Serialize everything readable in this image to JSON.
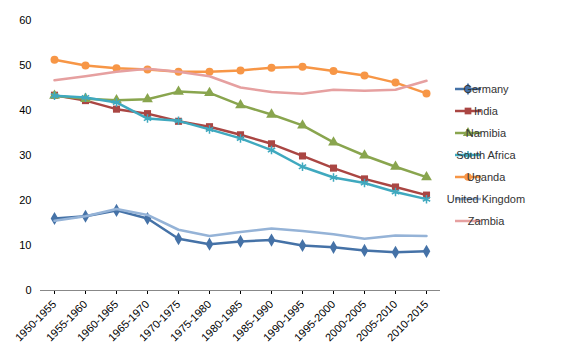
{
  "chart_data": {
    "type": "line",
    "categories": [
      "1950-1955",
      "1955-1960",
      "1960-1965",
      "1965-1970",
      "1970-1975",
      "1975-1980",
      "1980-1985",
      "1985-1990",
      "1990-1995",
      "1995-2000",
      "2000-2005",
      "2005-2010",
      "2010-2015"
    ],
    "ylim": [
      0,
      60
    ],
    "yticks": [
      0,
      10,
      20,
      30,
      40,
      50,
      60
    ],
    "grid": false,
    "legend": "right",
    "series": [
      {
        "name": "Germany",
        "color": "#4572a7",
        "marker": "diamond",
        "values": [
          16,
          16.5,
          17.8,
          16,
          11.5,
          10.3,
          10.9,
          11.2,
          10,
          9.6,
          8.9,
          8.5,
          8.7
        ]
      },
      {
        "name": "India",
        "color": "#aa4643",
        "marker": "square",
        "values": [
          43.4,
          42.2,
          40.3,
          39.3,
          37.6,
          36.4,
          34.6,
          32.6,
          29.9,
          27.2,
          24.8,
          23,
          21.2
        ]
      },
      {
        "name": "Namibia",
        "color": "#89a54e",
        "marker": "triangle",
        "values": [
          43.3,
          42.6,
          42.3,
          42.5,
          44.2,
          43.9,
          41.2,
          39.1,
          36.7,
          32.9,
          30,
          27.5,
          25.2
        ]
      },
      {
        "name": "South Africa",
        "color": "#3fa9bf",
        "marker": "asterisk",
        "values": [
          43.3,
          42.9,
          41.8,
          38.2,
          37.7,
          35.8,
          33.8,
          31.2,
          27.5,
          25.1,
          23.9,
          21.9,
          20.3
        ]
      },
      {
        "name": "Uganda",
        "color": "#f79646",
        "marker": "circle",
        "values": [
          51.3,
          50,
          49.4,
          49.1,
          48.6,
          48.6,
          48.9,
          49.5,
          49.7,
          48.8,
          47.8,
          46.2,
          43.8
        ]
      },
      {
        "name": "United Kingdom",
        "color": "#95b3d7",
        "marker": "none",
        "values": [
          15.5,
          16.5,
          18.1,
          16.8,
          13.5,
          12.1,
          13,
          13.8,
          13.2,
          12.5,
          11.5,
          12.2,
          12.1
        ]
      },
      {
        "name": "Zambia",
        "color": "#e6a0a0",
        "marker": "none",
        "values": [
          46.7,
          47.6,
          48.6,
          49.3,
          48.6,
          47.6,
          45.1,
          44.1,
          43.7,
          44.6,
          44.4,
          44.6,
          46.6
        ]
      }
    ]
  }
}
